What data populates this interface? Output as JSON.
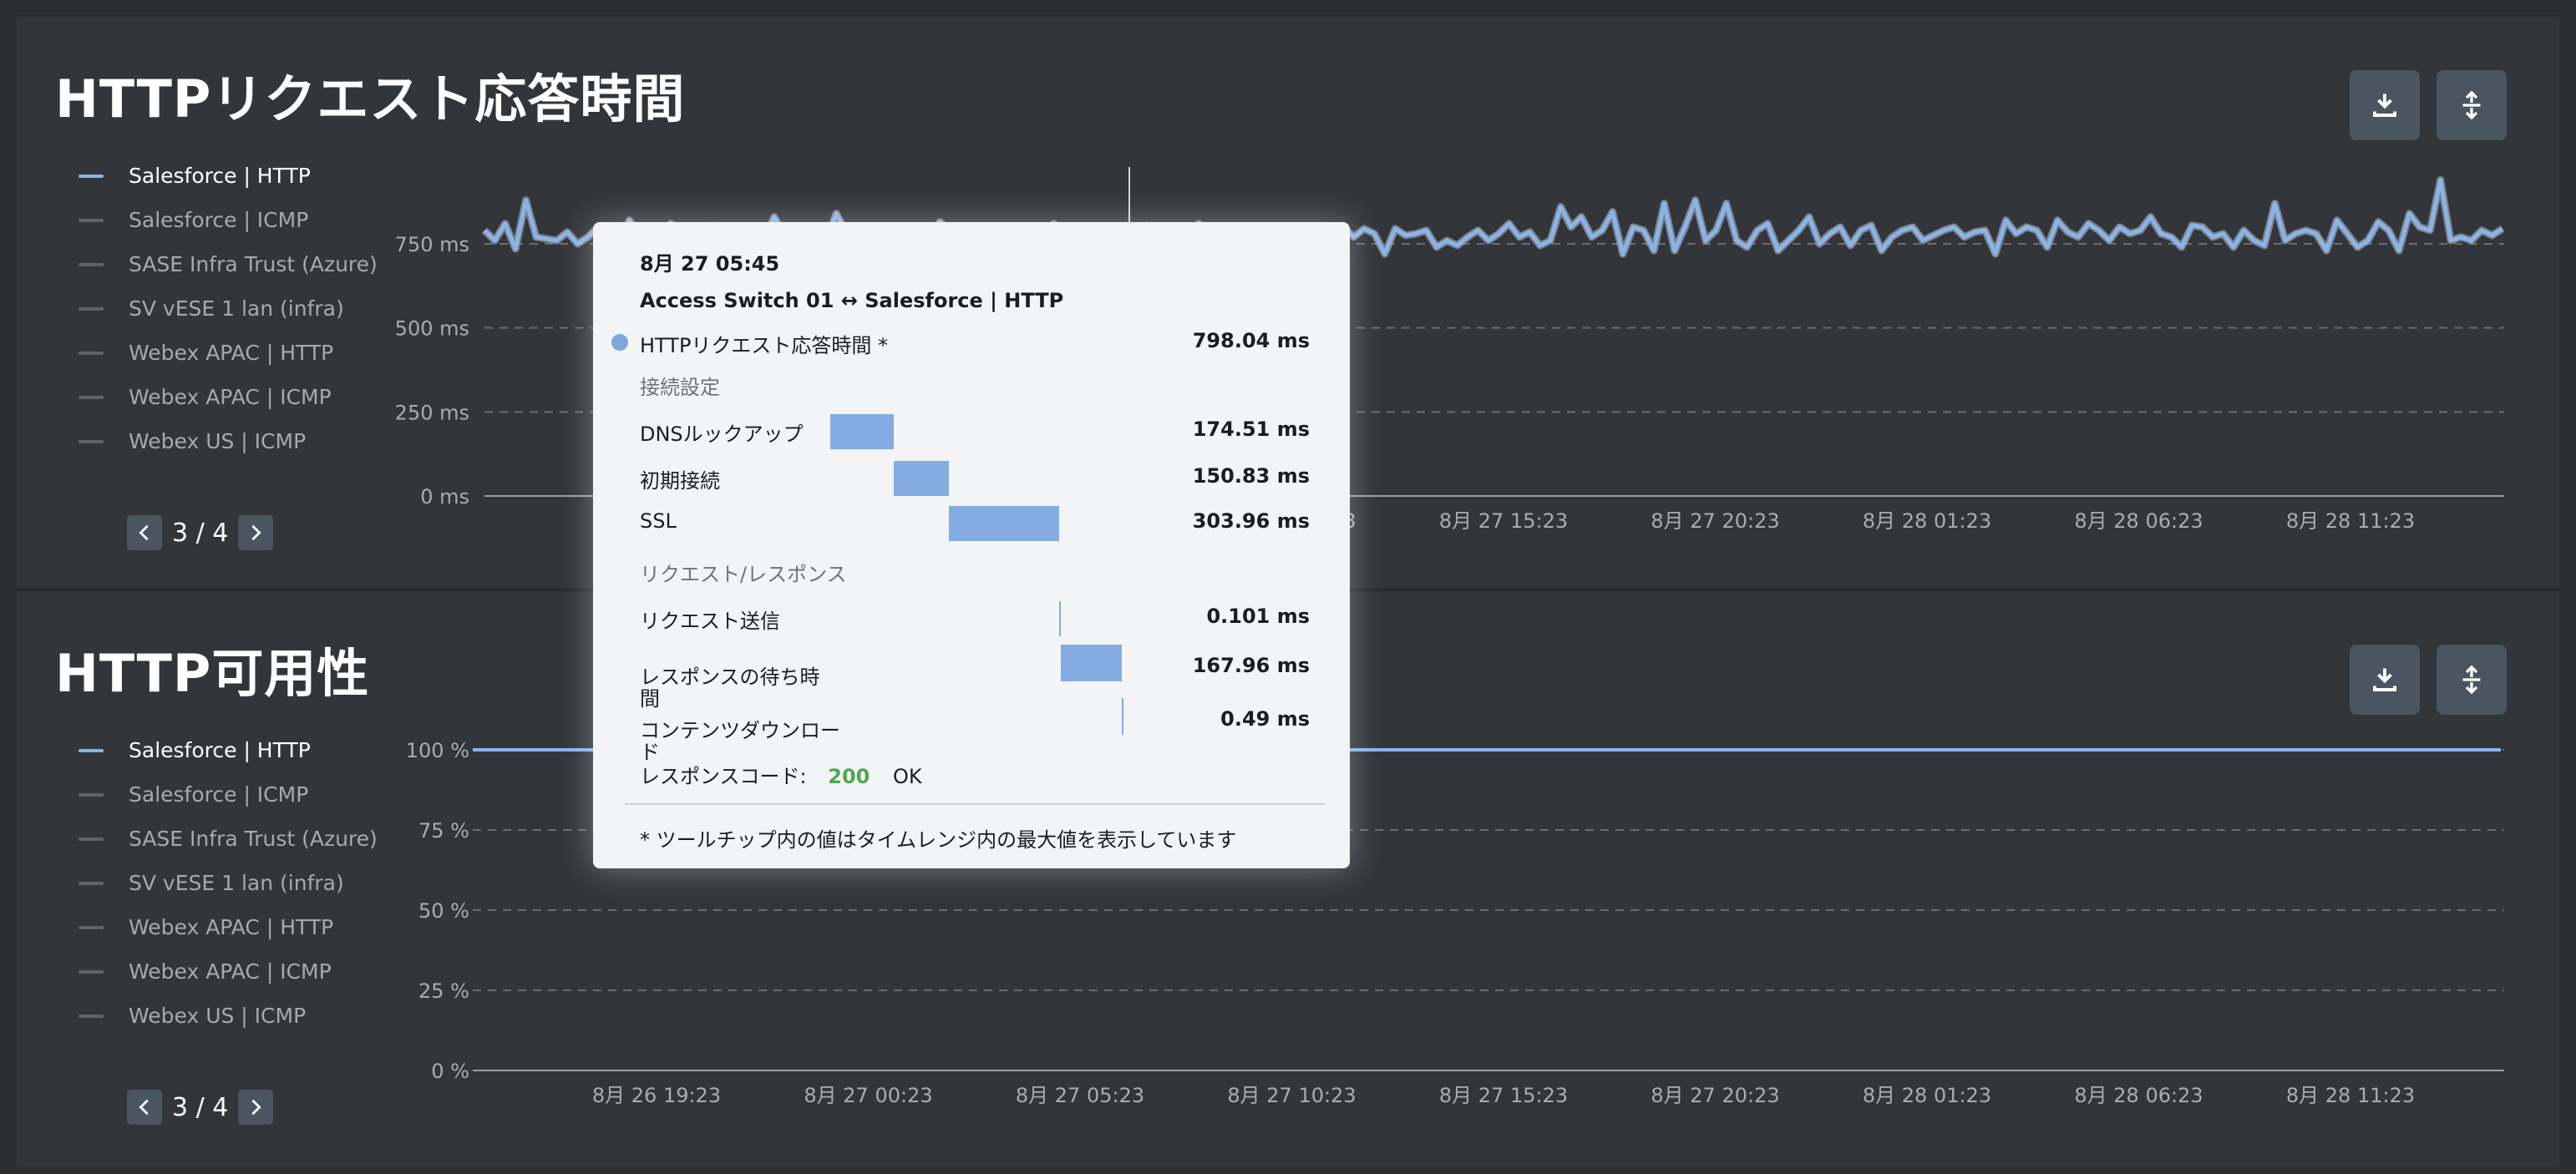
{
  "panels": [
    {
      "title": "HTTPリクエスト応答時間",
      "legend": [
        "Salesforce | HTTP",
        "Salesforce | ICMP",
        "SASE Infra Trust (Azure)",
        "SV vESE 1 lan (infra)",
        "Webex APAC | HTTP",
        "Webex APAC | ICMP",
        "Webex US | ICMP"
      ],
      "pager": "3 / 4"
    },
    {
      "title": "HTTP可用性",
      "legend": [
        "Salesforce | HTTP",
        "Salesforce | ICMP",
        "SASE Infra Trust (Azure)",
        "SV vESE 1 lan (infra)",
        "Webex APAC | HTTP",
        "Webex APAC | ICMP",
        "Webex US | ICMP"
      ],
      "pager": "3 / 4"
    }
  ],
  "icons": {
    "download": "download-icon",
    "expand": "expand-vertical-icon",
    "prev": "chevron-left-icon",
    "next": "chevron-right-icon"
  },
  "colors": {
    "series": "#8ab4e8",
    "background": "#2b2e33",
    "panel": "#32353a",
    "success": "#4ea84e"
  },
  "chart_data": [
    {
      "type": "line",
      "title": "HTTPリクエスト応答時間",
      "ylim": [
        0,
        1000
      ],
      "y_ticks": [
        "0 ms",
        "250 ms",
        "500 ms",
        "750 ms"
      ],
      "y_tick_values": [
        0,
        250,
        500,
        750
      ],
      "x_ticks": [
        "8月 26 19:23",
        "8月 27 00:23",
        "8月 27 05:23",
        "8月 27 10:23",
        "8月 27 15:23",
        "8月 27 20:23",
        "8月 28 01:23",
        "8月 28 06:23",
        "8月 28 11:23"
      ],
      "grid": true,
      "series": [
        {
          "name": "Salesforce | HTTP",
          "color": "#8ab4e8",
          "values": [
            790,
            760,
            810,
            735,
            880,
            770,
            765,
            760,
            785,
            750,
            770,
            800,
            790,
            760,
            820,
            775,
            780,
            745,
            810,
            790,
            770,
            760,
            805,
            780,
            770,
            800,
            790,
            760,
            830,
            775,
            770,
            800,
            790,
            760,
            840,
            780,
            775,
            795,
            760,
            800,
            780,
            760,
            790,
            770,
            815,
            790,
            760,
            780,
            800,
            770,
            790,
            785,
            800,
            770,
            760,
            810,
            790,
            770,
            780,
            760,
            790,
            800,
            775,
            770,
            805,
            780,
            790,
            775,
            760,
            810,
            790,
            770,
            780,
            800,
            790,
            760,
            780,
            800,
            770,
            790,
            780,
            760,
            790,
            800,
            770,
            795,
            780,
            720,
            795,
            775,
            780,
            790,
            740,
            760,
            745,
            770,
            790,
            760,
            780,
            810,
            770,
            785,
            745,
            760,
            860,
            800,
            830,
            770,
            790,
            845,
            720,
            800,
            790,
            730,
            870,
            730,
            800,
            880,
            760,
            790,
            870,
            760,
            740,
            790,
            810,
            730,
            760,
            790,
            830,
            750,
            780,
            800,
            745,
            790,
            805,
            730,
            770,
            790,
            800,
            760,
            775,
            790,
            800,
            770,
            785,
            790,
            720,
            820,
            780,
            800,
            790,
            740,
            820,
            785,
            770,
            810,
            790,
            760,
            800,
            780,
            790,
            830,
            780,
            770,
            740,
            805,
            800,
            770,
            780,
            740,
            790,
            760,
            745,
            870,
            760,
            780,
            790,
            780,
            730,
            820,
            780,
            740,
            760,
            815,
            790,
            730,
            840,
            800,
            790,
            940,
            760,
            770,
            760,
            790,
            775,
            795
          ]
        }
      ]
    },
    {
      "type": "line",
      "title": "HTTP可用性",
      "ylim": [
        0,
        100
      ],
      "y_ticks": [
        "0 %",
        "25 %",
        "50 %",
        "75 %",
        "100 %"
      ],
      "y_tick_values": [
        0,
        25,
        50,
        75,
        100
      ],
      "x_ticks": [
        "8月 26 19:23",
        "8月 27 00:23",
        "8月 27 05:23",
        "8月 27 10:23",
        "8月 27 15:23",
        "8月 27 20:23",
        "8月 28 01:23",
        "8月 28 06:23",
        "8月 28 11:23"
      ],
      "grid": true,
      "series": [
        {
          "name": "Salesforce | HTTP",
          "color": "#8ab4e8",
          "values": [
            100,
            100
          ]
        }
      ]
    }
  ],
  "tooltip": {
    "time": "8月 27 05:45",
    "path": "Access Switch 01  ↔  Salesforce | HTTP",
    "metric_label": "HTTPリクエスト応答時間 *",
    "metric_value": "798.04 ms",
    "section_connect": "接続設定",
    "rows_connect": [
      {
        "label": "DNSルックアップ",
        "value": "174.51 ms",
        "ms": 174.51
      },
      {
        "label": "初期接続",
        "value": "150.83 ms",
        "ms": 150.83
      },
      {
        "label": "SSL",
        "value": "303.96 ms",
        "ms": 303.96
      }
    ],
    "section_request": "リクエスト/レスポンス",
    "rows_request": [
      {
        "label": "リクエスト送信",
        "value": "0.101 ms",
        "ms": 0.101
      },
      {
        "label": "レスポンスの待ち時\n間",
        "value": "167.96 ms",
        "ms": 167.96
      },
      {
        "label": "コンテンツダウンロー\nド",
        "value": "0.49 ms",
        "ms": 0.49
      }
    ],
    "response_code_label": "レスポンスコード:",
    "response_code": "200",
    "response_text": "OK",
    "footnote": "* ツールチップ内の値はタイムレンジ内の最大値を表示しています"
  }
}
